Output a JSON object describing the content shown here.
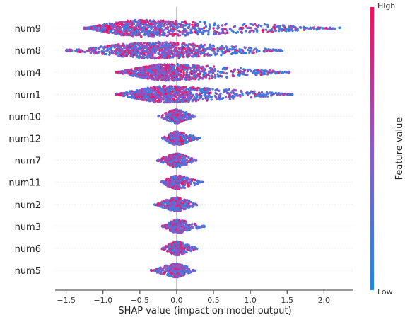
{
  "chart_data": {
    "type": "scatter",
    "subtype": "shap-beeswarm",
    "title": "",
    "xlabel": "SHAP value (impact on model output)",
    "ylabel": "",
    "xlim": [
      -1.65,
      2.4
    ],
    "xticks": [
      -1.5,
      -1.0,
      -0.5,
      0.0,
      0.5,
      1.0,
      1.5,
      2.0
    ],
    "xtick_labels": [
      "−1.5",
      "−1.0",
      "−0.5",
      "0.0",
      "0.5",
      "1.0",
      "1.5",
      "2.0"
    ],
    "grid": false,
    "zero_line": true,
    "colors": {
      "low": "#1e88e5",
      "high": "#ff0d57",
      "mid": "#8a5bd0"
    },
    "colorbar": {
      "label": "Feature value",
      "high_label": "High",
      "low_label": "Low",
      "placement": "right"
    },
    "features": [
      {
        "name": "num9",
        "min": -1.25,
        "max": 2.22,
        "peak": -0.55,
        "spread": 1.0
      },
      {
        "name": "num8",
        "min": -1.5,
        "max": 1.45,
        "peak": -0.3,
        "spread": 1.0
      },
      {
        "name": "num4",
        "min": -0.82,
        "max": 1.55,
        "peak": -0.15,
        "spread": 0.9
      },
      {
        "name": "num1",
        "min": -0.82,
        "max": 1.58,
        "peak": -0.2,
        "spread": 0.9
      },
      {
        "name": "num10",
        "min": -0.25,
        "max": 0.25,
        "peak": 0.0,
        "spread": 0.45
      },
      {
        "name": "num12",
        "min": -0.2,
        "max": 0.32,
        "peak": 0.0,
        "spread": 0.45
      },
      {
        "name": "num7",
        "min": -0.27,
        "max": 0.27,
        "peak": 0.0,
        "spread": 0.45
      },
      {
        "name": "num11",
        "min": -0.22,
        "max": 0.36,
        "peak": 0.0,
        "spread": 0.45
      },
      {
        "name": "num2",
        "min": -0.3,
        "max": 0.3,
        "peak": 0.0,
        "spread": 0.45
      },
      {
        "name": "num3",
        "min": -0.2,
        "max": 0.38,
        "peak": 0.0,
        "spread": 0.45
      },
      {
        "name": "num6",
        "min": -0.2,
        "max": 0.28,
        "peak": 0.0,
        "spread": 0.45
      },
      {
        "name": "num5",
        "min": -0.35,
        "max": 0.25,
        "peak": 0.0,
        "spread": 0.45
      }
    ]
  }
}
